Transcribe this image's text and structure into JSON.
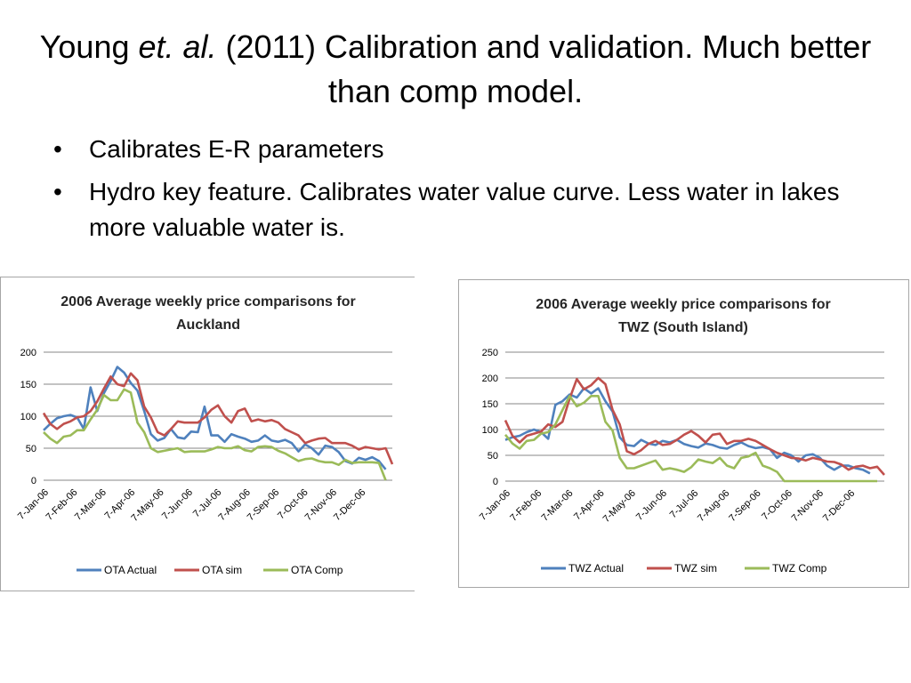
{
  "slide": {
    "title_part1": "Young ",
    "title_italic": "et. al.",
    "title_part2": " (2011) Calibration and validation. Much better than comp model.",
    "bullets": [
      "Calibrates E-R parameters",
      "Hydro key feature. Calibrates water value curve. Less water in lakes more valuable water is."
    ],
    "bullet_symbol": "•"
  },
  "colors": {
    "actual": "#4f81bd",
    "sim": "#c0504d",
    "comp": "#9bbb59",
    "grid": "#878787",
    "axis_text": "#000000"
  },
  "chart_data": [
    {
      "type": "line",
      "title": "2006 Average weekly price comparisons for Auckland",
      "title_lines": [
        "2006 Average weekly price comparisons for",
        "Auckland"
      ],
      "x_tick_labels": [
        "7-Jan-06",
        "7-Feb-06",
        "7-Mar-06",
        "7-Apr-06",
        "7-May-06",
        "7-Jun-06",
        "7-Jul-06",
        "7-Aug-06",
        "7-Sep-06",
        "7-Oct-06",
        "7-Nov-06",
        "7-Dec-06"
      ],
      "yticks": [
        0,
        50,
        100,
        150,
        200
      ],
      "ylim": [
        0,
        200
      ],
      "grid": true,
      "legend_position": "bottom",
      "series": [
        {
          "name": "OTA Actual",
          "values": [
            78,
            88,
            97,
            100,
            102,
            98,
            80,
            145,
            108,
            136,
            155,
            177,
            168,
            152,
            140,
            108,
            72,
            62,
            66,
            80,
            67,
            65,
            76,
            75,
            115,
            70,
            70,
            60,
            72,
            68,
            65,
            60,
            62,
            70,
            62,
            60,
            63,
            58,
            45,
            56,
            50,
            40,
            54,
            52,
            44,
            30,
            26,
            35,
            32,
            36,
            30,
            17
          ]
        },
        {
          "name": "OTA sim",
          "values": [
            105,
            88,
            80,
            88,
            92,
            98,
            100,
            108,
            123,
            143,
            162,
            150,
            147,
            167,
            156,
            115,
            98,
            75,
            70,
            80,
            92,
            90,
            90,
            90,
            98,
            110,
            117,
            100,
            90,
            108,
            112,
            92,
            95,
            92,
            94,
            90,
            80,
            75,
            70,
            58,
            62,
            65,
            66,
            58,
            58,
            58,
            54,
            48,
            52,
            50,
            48,
            50,
            25
          ]
        },
        {
          "name": "OTA Comp",
          "values": [
            75,
            65,
            58,
            68,
            70,
            78,
            78,
            95,
            110,
            133,
            125,
            125,
            142,
            137,
            90,
            75,
            50,
            44,
            46,
            48,
            50,
            44,
            45,
            45,
            45,
            48,
            52,
            50,
            50,
            53,
            47,
            45,
            52,
            53,
            52,
            46,
            42,
            36,
            30,
            33,
            34,
            30,
            28,
            28,
            24,
            32,
            27,
            28,
            28,
            28,
            27,
            0
          ]
        }
      ]
    },
    {
      "type": "line",
      "title": "2006 Average weekly price comparisons for TWZ (South Island)",
      "title_lines": [
        "2006 Average weekly price comparisons for",
        "TWZ  (South Island)"
      ],
      "x_tick_labels": [
        "7-Jan-06",
        "7-Feb-06",
        "7-Mar-06",
        "7-Apr-06",
        "7-May-06",
        "7-Jun-06",
        "7-Jul-06",
        "7-Aug-06",
        "7-Sep-06",
        "7-Oct-06",
        "7-Nov-06",
        "7-Dec-06"
      ],
      "yticks": [
        0,
        50,
        100,
        150,
        200,
        250
      ],
      "ylim": [
        0,
        250
      ],
      "grid": true,
      "legend_position": "bottom",
      "series": [
        {
          "name": "TWZ Actual",
          "values": [
            80,
            85,
            88,
            95,
            100,
            95,
            82,
            148,
            155,
            168,
            162,
            180,
            170,
            180,
            155,
            135,
            85,
            70,
            68,
            80,
            73,
            70,
            78,
            75,
            80,
            72,
            68,
            65,
            73,
            70,
            65,
            63,
            70,
            75,
            68,
            64,
            66,
            62,
            45,
            55,
            50,
            38,
            50,
            52,
            45,
            30,
            22,
            30,
            30,
            25,
            22,
            15
          ]
        },
        {
          "name": "TWZ sim",
          "values": [
            118,
            88,
            75,
            88,
            92,
            96,
            110,
            105,
            115,
            160,
            198,
            178,
            186,
            200,
            188,
            138,
            110,
            58,
            52,
            60,
            72,
            78,
            70,
            72,
            80,
            90,
            97,
            88,
            75,
            90,
            92,
            72,
            78,
            78,
            82,
            78,
            70,
            62,
            55,
            50,
            45,
            44,
            40,
            45,
            42,
            38,
            37,
            32,
            22,
            28,
            30,
            25,
            28,
            12
          ]
        },
        {
          "name": "TWZ Comp",
          "values": [
            90,
            73,
            63,
            78,
            80,
            92,
            95,
            110,
            138,
            165,
            145,
            152,
            165,
            165,
            115,
            98,
            45,
            25,
            25,
            30,
            35,
            40,
            22,
            25,
            22,
            18,
            27,
            42,
            38,
            35,
            45,
            30,
            25,
            45,
            48,
            55,
            30,
            25,
            18,
            0,
            0,
            0,
            0,
            0,
            0,
            0,
            0,
            0,
            0,
            0,
            0,
            0,
            0
          ]
        }
      ]
    }
  ]
}
